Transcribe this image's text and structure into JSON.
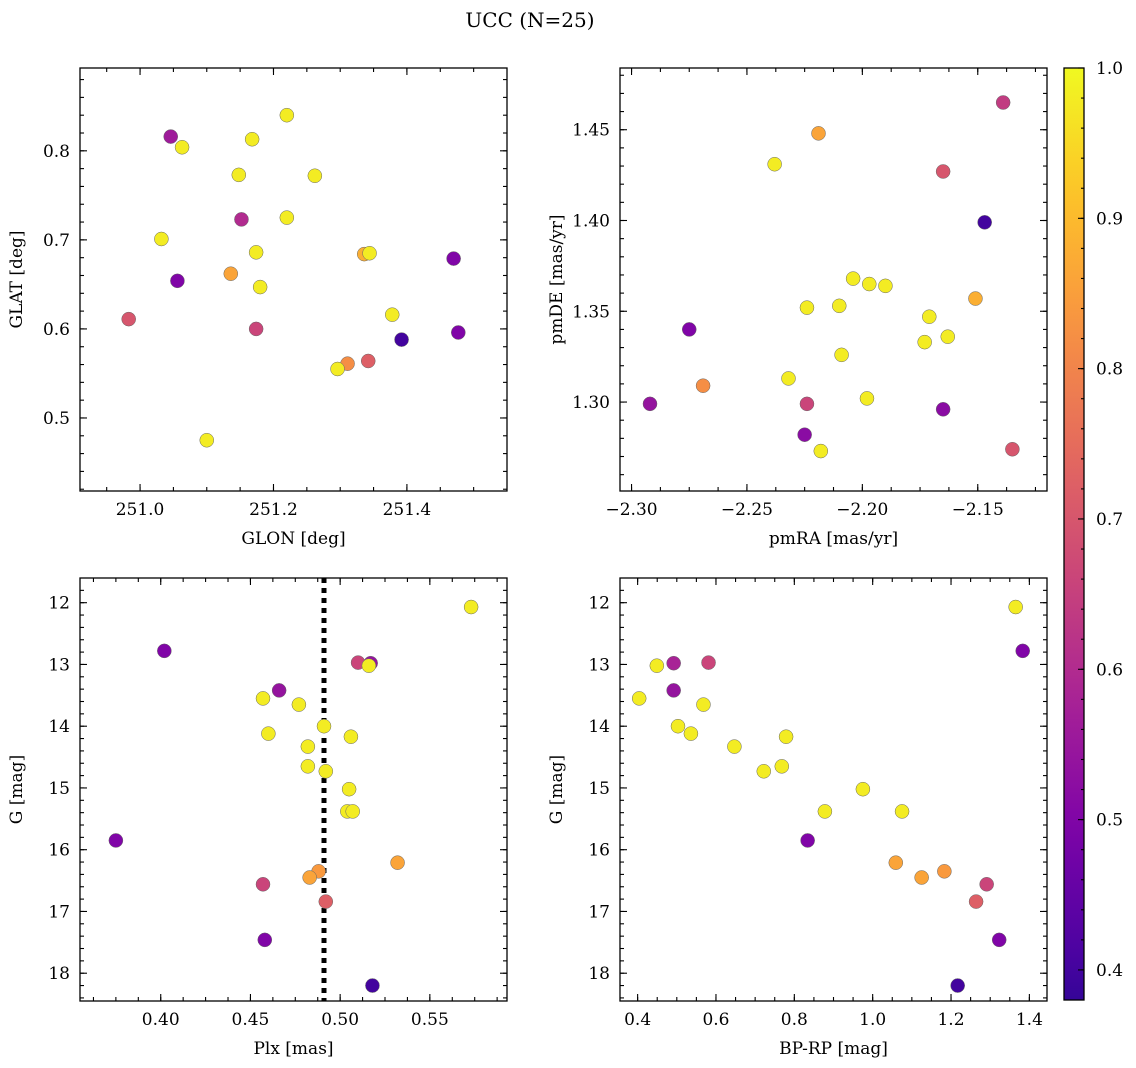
{
  "suptitle": "UCC (N=25)",
  "colorbar": {
    "range": [
      0.38,
      1.0
    ],
    "ticks": [
      0.4,
      0.5,
      0.6,
      0.7,
      0.8,
      0.9,
      1.0
    ],
    "tick_labels": [
      "0.4",
      "0.5",
      "0.6",
      "0.7",
      "0.8",
      "0.9",
      "1.0"
    ],
    "colormap": "plasma"
  },
  "chart_data": [
    {
      "type": "scatter",
      "title": "",
      "xlabel": "GLON [deg]",
      "ylabel": "GLAT [deg]",
      "xlim": [
        250.91,
        251.55
      ],
      "ylim": [
        0.418,
        0.893
      ],
      "invert_y": false,
      "xticks": [
        251.0,
        251.2,
        251.4
      ],
      "xtick_labels": [
        "251.0",
        "251.2",
        "251.4"
      ],
      "yticks": [
        0.5,
        0.6,
        0.7,
        0.8
      ],
      "ytick_labels": [
        "0.5",
        "0.6",
        "0.7",
        "0.8"
      ],
      "points": [
        {
          "x": 251.22,
          "y": 0.84,
          "c": 0.98
        },
        {
          "x": 251.046,
          "y": 0.816,
          "c": 0.56
        },
        {
          "x": 251.168,
          "y": 0.813,
          "c": 0.98
        },
        {
          "x": 251.063,
          "y": 0.804,
          "c": 0.98
        },
        {
          "x": 251.148,
          "y": 0.773,
          "c": 0.98
        },
        {
          "x": 251.262,
          "y": 0.772,
          "c": 0.98
        },
        {
          "x": 251.152,
          "y": 0.723,
          "c": 0.6
        },
        {
          "x": 251.22,
          "y": 0.725,
          "c": 0.98
        },
        {
          "x": 251.032,
          "y": 0.701,
          "c": 0.98
        },
        {
          "x": 251.174,
          "y": 0.686,
          "c": 0.98
        },
        {
          "x": 251.336,
          "y": 0.684,
          "c": 0.88
        },
        {
          "x": 251.344,
          "y": 0.685,
          "c": 0.98
        },
        {
          "x": 251.47,
          "y": 0.679,
          "c": 0.5
        },
        {
          "x": 251.136,
          "y": 0.662,
          "c": 0.86
        },
        {
          "x": 251.056,
          "y": 0.654,
          "c": 0.5
        },
        {
          "x": 251.18,
          "y": 0.647,
          "c": 0.98
        },
        {
          "x": 251.378,
          "y": 0.616,
          "c": 0.98
        },
        {
          "x": 250.983,
          "y": 0.611,
          "c": 0.7
        },
        {
          "x": 251.174,
          "y": 0.6,
          "c": 0.66
        },
        {
          "x": 251.477,
          "y": 0.596,
          "c": 0.5
        },
        {
          "x": 251.392,
          "y": 0.588,
          "c": 0.4
        },
        {
          "x": 251.342,
          "y": 0.564,
          "c": 0.72
        },
        {
          "x": 251.311,
          "y": 0.561,
          "c": 0.82
        },
        {
          "x": 251.296,
          "y": 0.555,
          "c": 0.98
        },
        {
          "x": 251.1,
          "y": 0.475,
          "c": 0.98
        }
      ]
    },
    {
      "type": "scatter",
      "title": "",
      "xlabel": "pmRA [mas/yr]",
      "ylabel": "pmDE [mas/yr]",
      "xlim": [
        -2.305,
        -2.12
      ],
      "ylim": [
        1.251,
        1.484
      ],
      "invert_y": false,
      "xticks": [
        -2.3,
        -2.25,
        -2.2,
        -2.15
      ],
      "xtick_labels": [
        "−2.30",
        "−2.25",
        "−2.20",
        "−2.15"
      ],
      "yticks": [
        1.3,
        1.35,
        1.4,
        1.45
      ],
      "ytick_labels": [
        "1.30",
        "1.35",
        "1.40",
        "1.45"
      ],
      "points": [
        {
          "x": -2.139,
          "y": 1.465,
          "c": 0.64
        },
        {
          "x": -2.219,
          "y": 1.448,
          "c": 0.86
        },
        {
          "x": -2.238,
          "y": 1.431,
          "c": 0.98
        },
        {
          "x": -2.165,
          "y": 1.427,
          "c": 0.7
        },
        {
          "x": -2.147,
          "y": 1.399,
          "c": 0.4
        },
        {
          "x": -2.204,
          "y": 1.368,
          "c": 0.98
        },
        {
          "x": -2.197,
          "y": 1.365,
          "c": 0.98
        },
        {
          "x": -2.19,
          "y": 1.364,
          "c": 0.98
        },
        {
          "x": -2.151,
          "y": 1.357,
          "c": 0.88
        },
        {
          "x": -2.21,
          "y": 1.353,
          "c": 0.98
        },
        {
          "x": -2.224,
          "y": 1.352,
          "c": 0.98
        },
        {
          "x": -2.171,
          "y": 1.347,
          "c": 0.98
        },
        {
          "x": -2.275,
          "y": 1.34,
          "c": 0.5
        },
        {
          "x": -2.163,
          "y": 1.336,
          "c": 0.98
        },
        {
          "x": -2.173,
          "y": 1.333,
          "c": 0.98
        },
        {
          "x": -2.209,
          "y": 1.326,
          "c": 0.98
        },
        {
          "x": -2.232,
          "y": 1.313,
          "c": 0.98
        },
        {
          "x": -2.269,
          "y": 1.309,
          "c": 0.82
        },
        {
          "x": -2.198,
          "y": 1.302,
          "c": 0.98
        },
        {
          "x": -2.224,
          "y": 1.299,
          "c": 0.66
        },
        {
          "x": -2.292,
          "y": 1.299,
          "c": 0.54
        },
        {
          "x": -2.165,
          "y": 1.296,
          "c": 0.52
        },
        {
          "x": -2.225,
          "y": 1.282,
          "c": 0.52
        },
        {
          "x": -2.218,
          "y": 1.273,
          "c": 0.98
        },
        {
          "x": -2.135,
          "y": 1.274,
          "c": 0.7
        }
      ]
    },
    {
      "type": "scatter",
      "title": "",
      "xlabel": "Plx [mas]",
      "ylabel": "G [mag]",
      "xlim": [
        0.355,
        0.593
      ],
      "ylim": [
        11.6,
        18.45
      ],
      "invert_y": true,
      "xticks": [
        0.4,
        0.45,
        0.5,
        0.55
      ],
      "xtick_labels": [
        "0.40",
        "0.45",
        "0.50",
        "0.55"
      ],
      "yticks": [
        12,
        13,
        14,
        15,
        16,
        17,
        18
      ],
      "ytick_labels": [
        "12",
        "13",
        "14",
        "15",
        "16",
        "17",
        "18"
      ],
      "vline": {
        "x": 0.491,
        "style": "dotted",
        "color": "#000000"
      },
      "points": [
        {
          "x": 0.573,
          "y": 12.07,
          "c": 0.98
        },
        {
          "x": 0.402,
          "y": 12.78,
          "c": 0.5
        },
        {
          "x": 0.51,
          "y": 12.97,
          "c": 0.66
        },
        {
          "x": 0.517,
          "y": 12.98,
          "c": 0.54
        },
        {
          "x": 0.516,
          "y": 13.02,
          "c": 0.98
        },
        {
          "x": 0.466,
          "y": 13.42,
          "c": 0.54
        },
        {
          "x": 0.457,
          "y": 13.55,
          "c": 0.98
        },
        {
          "x": 0.477,
          "y": 13.65,
          "c": 0.98
        },
        {
          "x": 0.491,
          "y": 14.0,
          "c": 0.98
        },
        {
          "x": 0.46,
          "y": 14.12,
          "c": 0.98
        },
        {
          "x": 0.506,
          "y": 14.17,
          "c": 0.98
        },
        {
          "x": 0.482,
          "y": 14.33,
          "c": 0.98
        },
        {
          "x": 0.482,
          "y": 14.65,
          "c": 0.98
        },
        {
          "x": 0.492,
          "y": 14.73,
          "c": 0.98
        },
        {
          "x": 0.505,
          "y": 15.02,
          "c": 0.98
        },
        {
          "x": 0.504,
          "y": 15.38,
          "c": 0.98
        },
        {
          "x": 0.507,
          "y": 15.38,
          "c": 0.98
        },
        {
          "x": 0.375,
          "y": 15.85,
          "c": 0.5
        },
        {
          "x": 0.532,
          "y": 16.21,
          "c": 0.86
        },
        {
          "x": 0.488,
          "y": 16.35,
          "c": 0.84
        },
        {
          "x": 0.483,
          "y": 16.45,
          "c": 0.86
        },
        {
          "x": 0.457,
          "y": 16.56,
          "c": 0.66
        },
        {
          "x": 0.492,
          "y": 16.84,
          "c": 0.72
        },
        {
          "x": 0.458,
          "y": 17.46,
          "c": 0.5
        },
        {
          "x": 0.518,
          "y": 18.2,
          "c": 0.4
        }
      ]
    },
    {
      "type": "scatter",
      "title": "",
      "xlabel": "BP-RP [mag]",
      "ylabel": "G [mag]",
      "xlim": [
        0.355,
        1.445
      ],
      "ylim": [
        11.6,
        18.45
      ],
      "invert_y": true,
      "xticks": [
        0.4,
        0.6,
        0.8,
        1.0,
        1.2,
        1.4
      ],
      "xtick_labels": [
        "0.4",
        "0.6",
        "0.8",
        "1.0",
        "1.2",
        "1.4"
      ],
      "yticks": [
        12,
        13,
        14,
        15,
        16,
        17,
        18
      ],
      "ytick_labels": [
        "12",
        "13",
        "14",
        "15",
        "16",
        "17",
        "18"
      ],
      "points": [
        {
          "x": 1.365,
          "y": 12.07,
          "c": 0.98
        },
        {
          "x": 1.383,
          "y": 12.78,
          "c": 0.5
        },
        {
          "x": 0.449,
          "y": 13.02,
          "c": 0.98
        },
        {
          "x": 0.492,
          "y": 12.98,
          "c": 0.58
        },
        {
          "x": 0.581,
          "y": 12.97,
          "c": 0.66
        },
        {
          "x": 0.492,
          "y": 13.42,
          "c": 0.54
        },
        {
          "x": 0.404,
          "y": 13.55,
          "c": 0.98
        },
        {
          "x": 0.568,
          "y": 13.65,
          "c": 0.98
        },
        {
          "x": 0.503,
          "y": 14.0,
          "c": 0.98
        },
        {
          "x": 0.536,
          "y": 14.12,
          "c": 0.98
        },
        {
          "x": 0.779,
          "y": 14.17,
          "c": 0.98
        },
        {
          "x": 0.647,
          "y": 14.33,
          "c": 0.98
        },
        {
          "x": 0.768,
          "y": 14.65,
          "c": 0.98
        },
        {
          "x": 0.722,
          "y": 14.73,
          "c": 0.98
        },
        {
          "x": 0.975,
          "y": 15.02,
          "c": 0.98
        },
        {
          "x": 0.878,
          "y": 15.38,
          "c": 0.98
        },
        {
          "x": 1.075,
          "y": 15.38,
          "c": 0.98
        },
        {
          "x": 0.834,
          "y": 15.85,
          "c": 0.5
        },
        {
          "x": 1.059,
          "y": 16.21,
          "c": 0.86
        },
        {
          "x": 1.183,
          "y": 16.35,
          "c": 0.84
        },
        {
          "x": 1.125,
          "y": 16.45,
          "c": 0.86
        },
        {
          "x": 1.291,
          "y": 16.56,
          "c": 0.66
        },
        {
          "x": 1.264,
          "y": 16.84,
          "c": 0.72
        },
        {
          "x": 1.323,
          "y": 17.46,
          "c": 0.5
        },
        {
          "x": 1.217,
          "y": 18.2,
          "c": 0.4
        }
      ]
    }
  ]
}
